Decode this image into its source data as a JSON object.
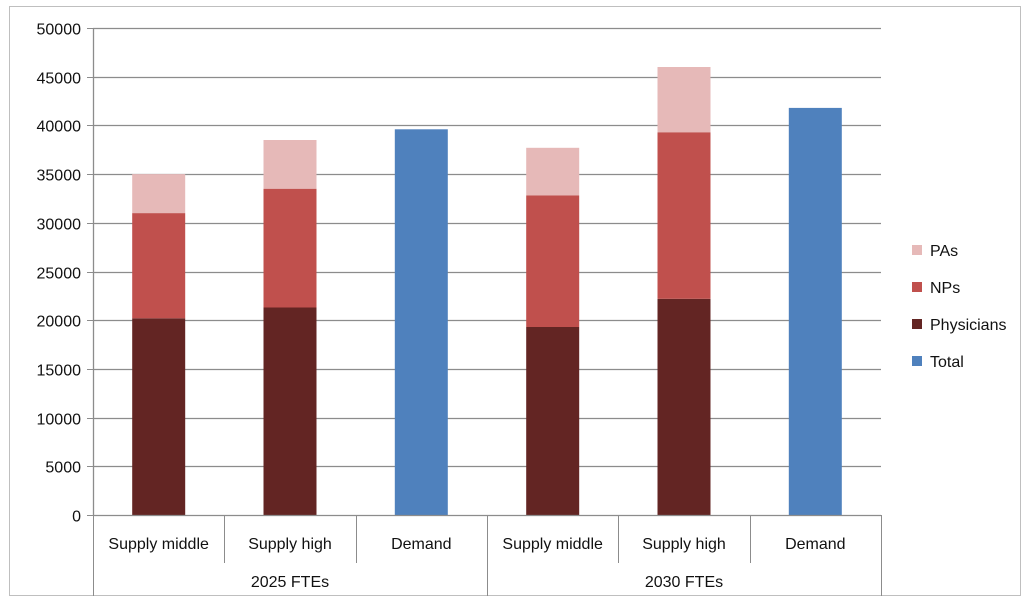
{
  "chart_data": {
    "type": "bar",
    "stacked": true,
    "ylim": [
      0,
      50000
    ],
    "yticks": [
      "0",
      "5000",
      "10000",
      "15000",
      "20000",
      "25000",
      "30000",
      "35000",
      "40000",
      "45000",
      "50000"
    ],
    "grid": true,
    "legend_position": "right",
    "groups": [
      {
        "label": "2025 FTEs",
        "categories": [
          "Supply middle",
          "Supply high",
          "Demand"
        ]
      },
      {
        "label": "2030 FTEs",
        "categories": [
          "Supply middle",
          "Supply high",
          "Demand"
        ]
      }
    ],
    "categories": [
      "Supply middle",
      "Supply high",
      "Demand",
      "Supply middle",
      "Supply high",
      "Demand"
    ],
    "series": [
      {
        "name": "Physicians",
        "color": "#632523",
        "values": [
          20200,
          21300,
          0,
          19300,
          22200,
          0
        ]
      },
      {
        "name": "NPs",
        "color": "#c0504d",
        "values": [
          10800,
          12200,
          0,
          13500,
          17100,
          0
        ]
      },
      {
        "name": "PAs",
        "color": "#e6b9b8",
        "values": [
          4000,
          5000,
          0,
          4900,
          6700,
          0
        ]
      },
      {
        "name": "Total",
        "color": "#4f81bd",
        "values": [
          0,
          0,
          39600,
          0,
          0,
          41800
        ]
      }
    ],
    "legend": [
      {
        "name": "PAs",
        "color": "#e6b9b8"
      },
      {
        "name": "NPs",
        "color": "#c0504d"
      },
      {
        "name": "Physicians",
        "color": "#632523"
      },
      {
        "name": "Total",
        "color": "#4f81bd"
      }
    ]
  }
}
